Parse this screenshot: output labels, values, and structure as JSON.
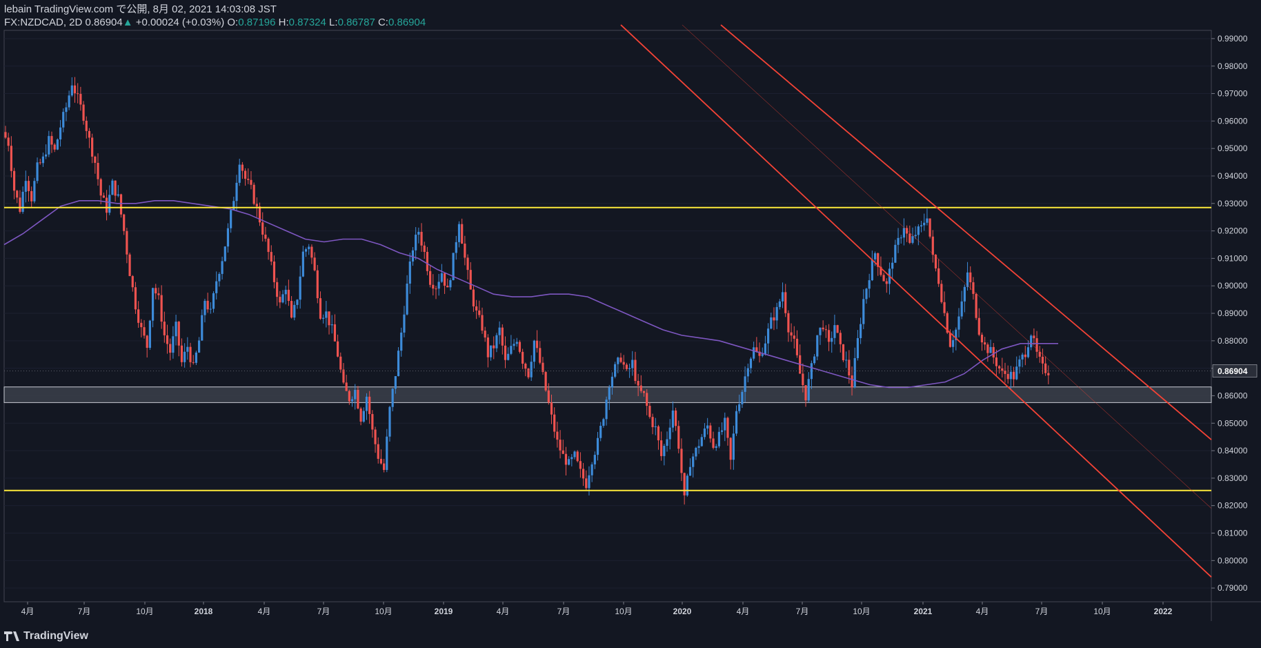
{
  "header": {
    "publish_line": "lebain TradingView.com で公開, 8月 02, 2021 14:03:08 JST",
    "symbol": "FX:NZDCAD, 2D",
    "last": "0.86904",
    "change_arrow": "▲",
    "change": "+0.00024 (+0.03%)",
    "o_label": "O:",
    "o": "0.87196",
    "h_label": "H:",
    "h": "0.87324",
    "l_label": "L:",
    "l": "0.86787",
    "c_label": "C:",
    "c": "0.86904"
  },
  "footer": {
    "brand": "TradingView"
  },
  "colors": {
    "background": "#131722",
    "up": "#3d8bd9",
    "down": "#ef5350",
    "ma": "#7e57c2",
    "horizontal_level": "#ffeb3b",
    "channel": "#f44336",
    "zone": "#3b3f4a",
    "text": "#d1d4dc",
    "accent_value": "#26a69a"
  },
  "chart_data": {
    "type": "candlestick",
    "symbol": "FX:NZDCAD",
    "timeframe": "2D",
    "y_range": [
      0.785,
      0.993
    ],
    "y_ticks": [
      "0.99000",
      "0.98000",
      "0.97000",
      "0.96000",
      "0.95000",
      "0.94000",
      "0.93000",
      "0.92000",
      "0.91000",
      "0.90000",
      "0.89000",
      "0.88000",
      "0.87000",
      "0.86000",
      "0.85000",
      "0.84000",
      "0.83000",
      "0.82000",
      "0.81000",
      "0.80000",
      "0.79000"
    ],
    "x_ticks": [
      "4月",
      "7月",
      "10月",
      "2018",
      "4月",
      "7月",
      "10月",
      "2019",
      "4月",
      "7月",
      "10月",
      "2020",
      "4月",
      "7月",
      "10月",
      "2021",
      "4月",
      "7月",
      "10月",
      "2022"
    ],
    "current_price_label": "0.86904",
    "price_path": [
      0.956,
      0.952,
      0.935,
      0.928,
      0.94,
      0.932,
      0.943,
      0.946,
      0.953,
      0.949,
      0.958,
      0.965,
      0.974,
      0.968,
      0.962,
      0.953,
      0.945,
      0.933,
      0.928,
      0.937,
      0.932,
      0.92,
      0.905,
      0.893,
      0.884,
      0.878,
      0.9,
      0.895,
      0.882,
      0.876,
      0.885,
      0.872,
      0.878,
      0.87,
      0.88,
      0.895,
      0.89,
      0.902,
      0.91,
      0.92,
      0.932,
      0.946,
      0.939,
      0.935,
      0.928,
      0.92,
      0.912,
      0.902,
      0.893,
      0.9,
      0.887,
      0.896,
      0.912,
      0.915,
      0.905,
      0.89,
      0.89,
      0.884,
      0.875,
      0.863,
      0.859,
      0.862,
      0.852,
      0.86,
      0.847,
      0.838,
      0.833,
      0.855,
      0.868,
      0.883,
      0.9,
      0.914,
      0.92,
      0.912,
      0.902,
      0.9,
      0.905,
      0.898,
      0.91,
      0.924,
      0.91,
      0.898,
      0.89,
      0.885,
      0.875,
      0.878,
      0.884,
      0.872,
      0.877,
      0.881,
      0.873,
      0.868,
      0.88,
      0.872,
      0.862,
      0.852,
      0.843,
      0.838,
      0.835,
      0.838,
      0.832,
      0.828,
      0.837,
      0.843,
      0.853,
      0.865,
      0.87,
      0.874,
      0.868,
      0.872,
      0.862,
      0.86,
      0.852,
      0.848,
      0.838,
      0.845,
      0.855,
      0.842,
      0.822,
      0.836,
      0.84,
      0.845,
      0.849,
      0.842,
      0.845,
      0.85,
      0.836,
      0.855,
      0.862,
      0.872,
      0.877,
      0.874,
      0.88,
      0.887,
      0.891,
      0.898,
      0.885,
      0.879,
      0.868,
      0.86,
      0.87,
      0.882,
      0.886,
      0.878,
      0.886,
      0.877,
      0.872,
      0.864,
      0.88,
      0.895,
      0.904,
      0.912,
      0.905,
      0.9,
      0.91,
      0.916,
      0.922,
      0.915,
      0.919,
      0.921,
      0.926,
      0.91,
      0.902,
      0.89,
      0.879,
      0.884,
      0.893,
      0.905,
      0.896,
      0.884,
      0.878,
      0.876,
      0.872,
      0.868,
      0.868,
      0.867,
      0.872,
      0.876,
      0.883,
      0.875,
      0.87,
      0.869
    ],
    "moving_average_path": [
      0.915,
      0.919,
      0.924,
      0.929,
      0.931,
      0.931,
      0.93,
      0.93,
      0.931,
      0.931,
      0.93,
      0.929,
      0.928,
      0.926,
      0.923,
      0.92,
      0.917,
      0.916,
      0.917,
      0.917,
      0.915,
      0.912,
      0.91,
      0.906,
      0.903,
      0.9,
      0.897,
      0.896,
      0.896,
      0.897,
      0.897,
      0.896,
      0.893,
      0.89,
      0.887,
      0.884,
      0.882,
      0.881,
      0.88,
      0.878,
      0.876,
      0.874,
      0.872,
      0.87,
      0.868,
      0.866,
      0.864,
      0.863,
      0.863,
      0.864,
      0.865,
      0.868,
      0.873,
      0.877,
      0.879,
      0.879,
      0.879
    ],
    "horizontal_levels": [
      0.9285,
      0.8255
    ],
    "zone": [
      0.8575,
      0.8632
    ],
    "channel_lines": [
      {
        "from": [
          "2019-09",
          0.995
        ],
        "to": [
          "2022-05",
          0.794
        ]
      },
      {
        "from": [
          "2020-02",
          0.995
        ],
        "to": [
          "2022-05",
          0.844
        ]
      },
      {
        "from": [
          "2019-12",
          0.995
        ],
        "to": [
          "2022-05",
          0.819
        ],
        "style": "thin"
      }
    ]
  }
}
